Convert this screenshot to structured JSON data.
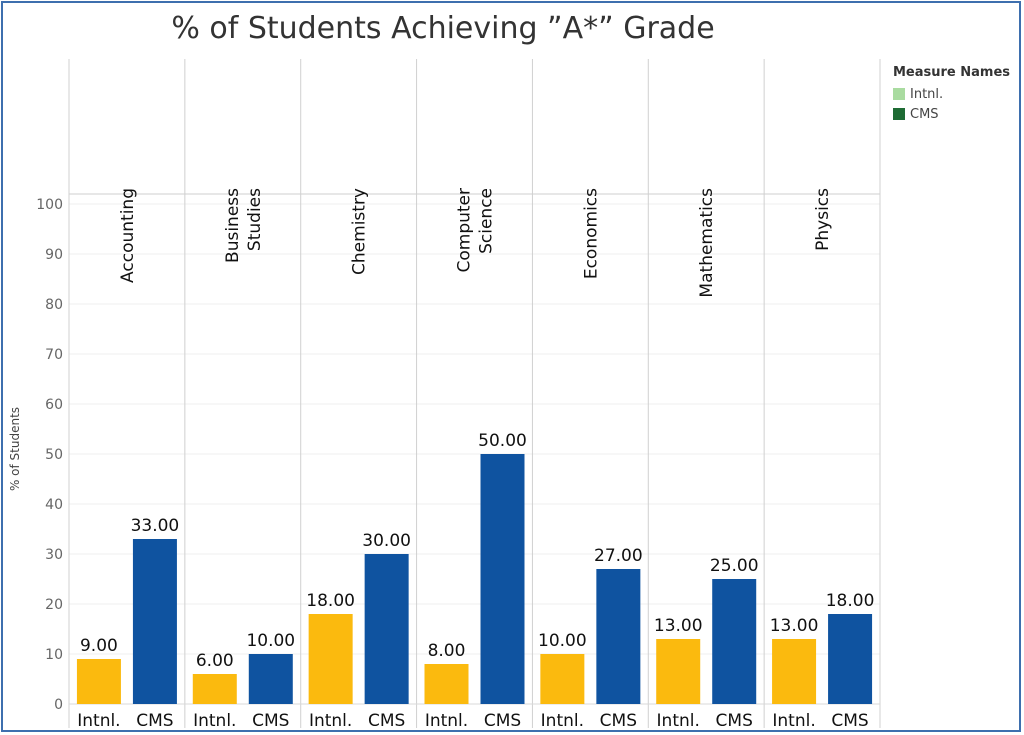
{
  "chart_data": {
    "type": "bar",
    "title": "% of Students Achieving ”A*” Grade",
    "ylabel": "% of Students",
    "ylim": [
      0,
      100
    ],
    "yticks": [
      0,
      10,
      20,
      30,
      40,
      50,
      60,
      70,
      80,
      90,
      100
    ],
    "categories": [
      "Accounting",
      "Business Studies",
      "Chemistry",
      "Computer Science",
      "Economics",
      "Mathematics",
      "Physics"
    ],
    "category_lines": [
      [
        "Accounting"
      ],
      [
        "Business",
        "Studies"
      ],
      [
        "Chemistry"
      ],
      [
        "Computer",
        "Science"
      ],
      [
        "Economics"
      ],
      [
        "Mathematics"
      ],
      [
        "Physics"
      ]
    ],
    "series": [
      {
        "name": "Intnl.",
        "color": "#FBBA0E",
        "values": [
          9,
          6,
          18,
          8,
          10,
          13,
          13
        ]
      },
      {
        "name": "CMS",
        "color": "#0F53A0",
        "values": [
          33,
          10,
          30,
          50,
          27,
          25,
          18
        ]
      }
    ],
    "grid": true,
    "legend": {
      "title": "Measure Names",
      "placement": "top-right",
      "items": [
        {
          "label": "Intnl.",
          "color": "#A9DBA0"
        },
        {
          "label": "CMS",
          "color": "#1E6B34"
        }
      ]
    }
  }
}
